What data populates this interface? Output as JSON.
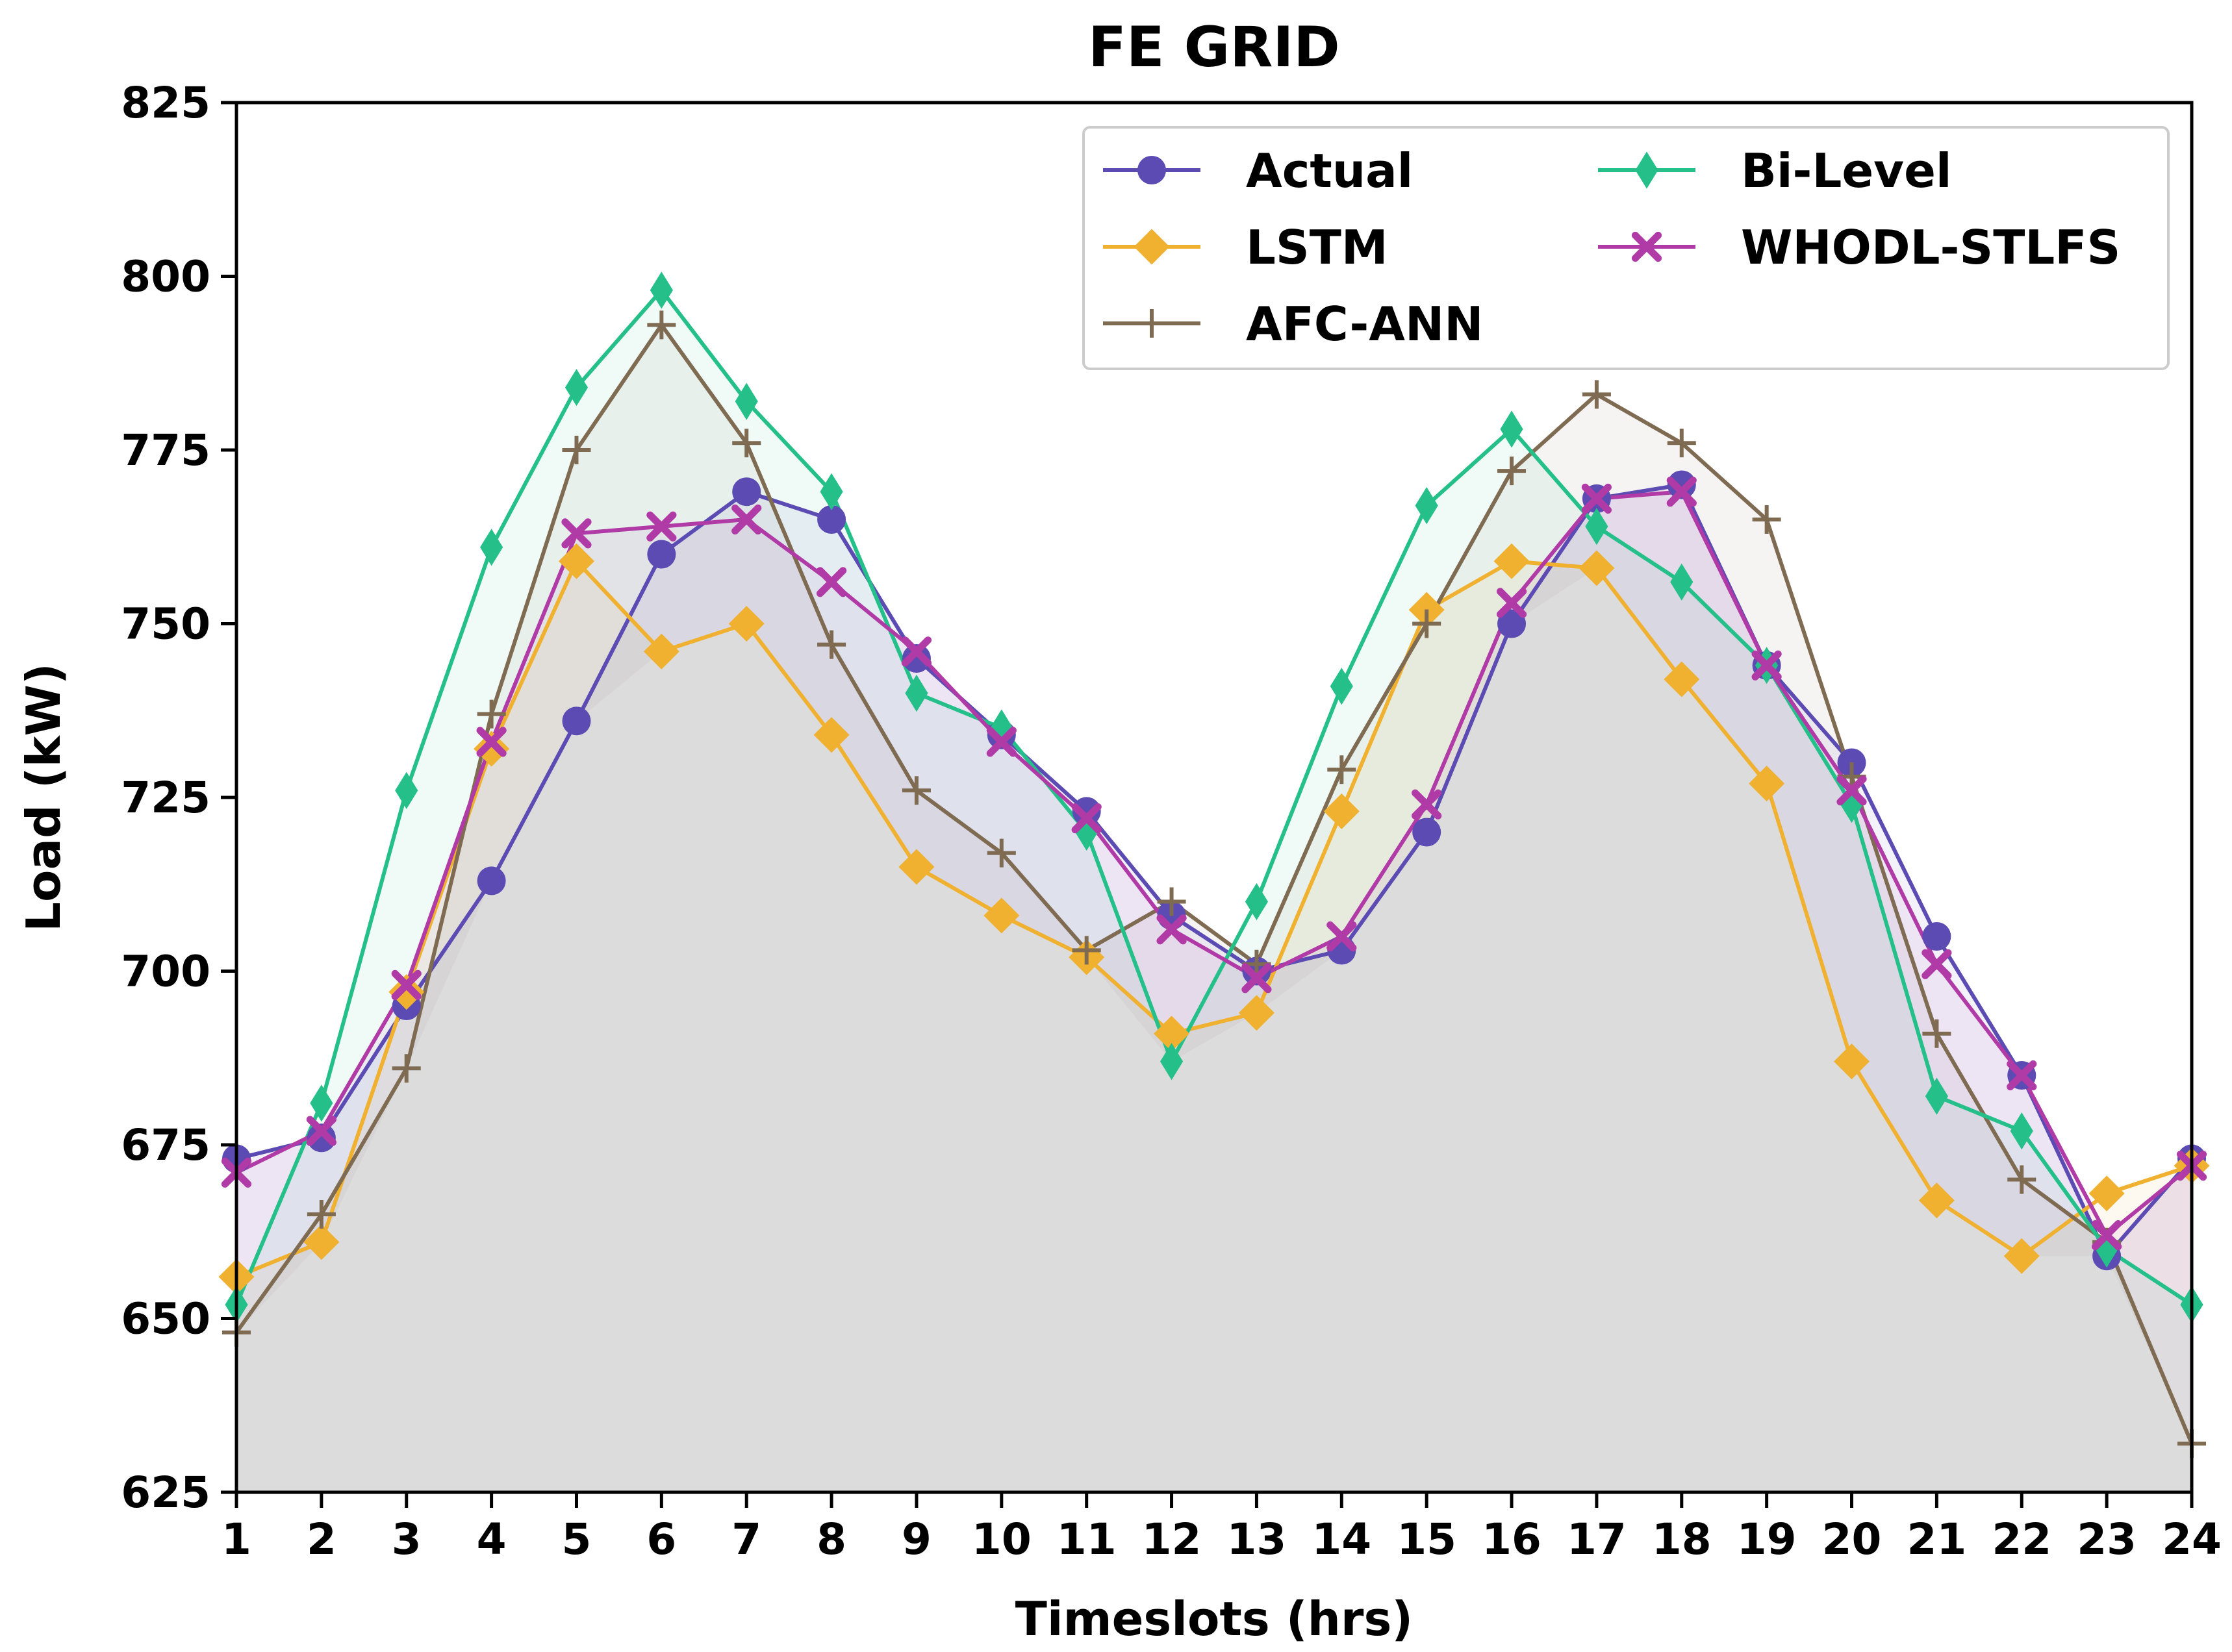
{
  "chart_data": {
    "type": "line",
    "title": "FE GRID",
    "xlabel": "Timeslots (hrs)",
    "ylabel": "Load (kW)",
    "xlim": [
      1,
      24
    ],
    "ylim": [
      625,
      825
    ],
    "x": [
      1,
      2,
      3,
      4,
      5,
      6,
      7,
      8,
      9,
      10,
      11,
      12,
      13,
      14,
      15,
      16,
      17,
      18,
      19,
      20,
      21,
      22,
      23,
      24
    ],
    "x_ticks": [
      "1",
      "2",
      "3",
      "4",
      "5",
      "6",
      "7",
      "8",
      "9",
      "10",
      "11",
      "12",
      "13",
      "14",
      "15",
      "16",
      "17",
      "18",
      "19",
      "20",
      "21",
      "22",
      "23",
      "24"
    ],
    "y_ticks": [
      "625",
      "650",
      "675",
      "700",
      "725",
      "750",
      "775",
      "800",
      "825"
    ],
    "legend_position": "top-right",
    "series": [
      {
        "name": "Actual",
        "color": "#5b4bb2",
        "marker": "circle",
        "values": [
          673,
          676,
          695,
          713,
          736,
          760,
          769,
          765,
          745,
          734,
          723,
          708,
          700,
          703,
          720,
          750,
          768,
          770,
          744,
          730,
          705,
          685,
          659,
          673
        ]
      },
      {
        "name": "LSTM",
        "color": "#f0b030",
        "marker": "diamond",
        "values": [
          656,
          661,
          697,
          732,
          759,
          746,
          750,
          734,
          715,
          708,
          702,
          691,
          694,
          723,
          752,
          759,
          758,
          742,
          727,
          687,
          667,
          659,
          668,
          672
        ]
      },
      {
        "name": "AFC-ANN",
        "color": "#7f6a52",
        "marker": "plus",
        "values": [
          648,
          665,
          686,
          737,
          775,
          793,
          776,
          747,
          726,
          717,
          703,
          710,
          701,
          729,
          750,
          772,
          783,
          776,
          765,
          728,
          691,
          670,
          661,
          632
        ]
      },
      {
        "name": "Bi-Level",
        "color": "#25c08a",
        "marker": "thin_diamond",
        "values": [
          652,
          681,
          726,
          761,
          784,
          798,
          782,
          769,
          740,
          735,
          720,
          687,
          710,
          741,
          767,
          778,
          764,
          756,
          744,
          724,
          682,
          677,
          660,
          652
        ]
      },
      {
        "name": "WHODL-STLFS",
        "color": "#b03aa6",
        "marker": "x",
        "values": [
          671,
          677,
          698,
          733,
          763,
          764,
          765,
          756,
          746,
          733,
          722,
          706,
          699,
          705,
          724,
          753,
          768,
          769,
          744,
          726,
          701,
          685,
          662,
          672
        ]
      }
    ],
    "fill_colors": {
      "base": "#dcdcdc"
    }
  }
}
